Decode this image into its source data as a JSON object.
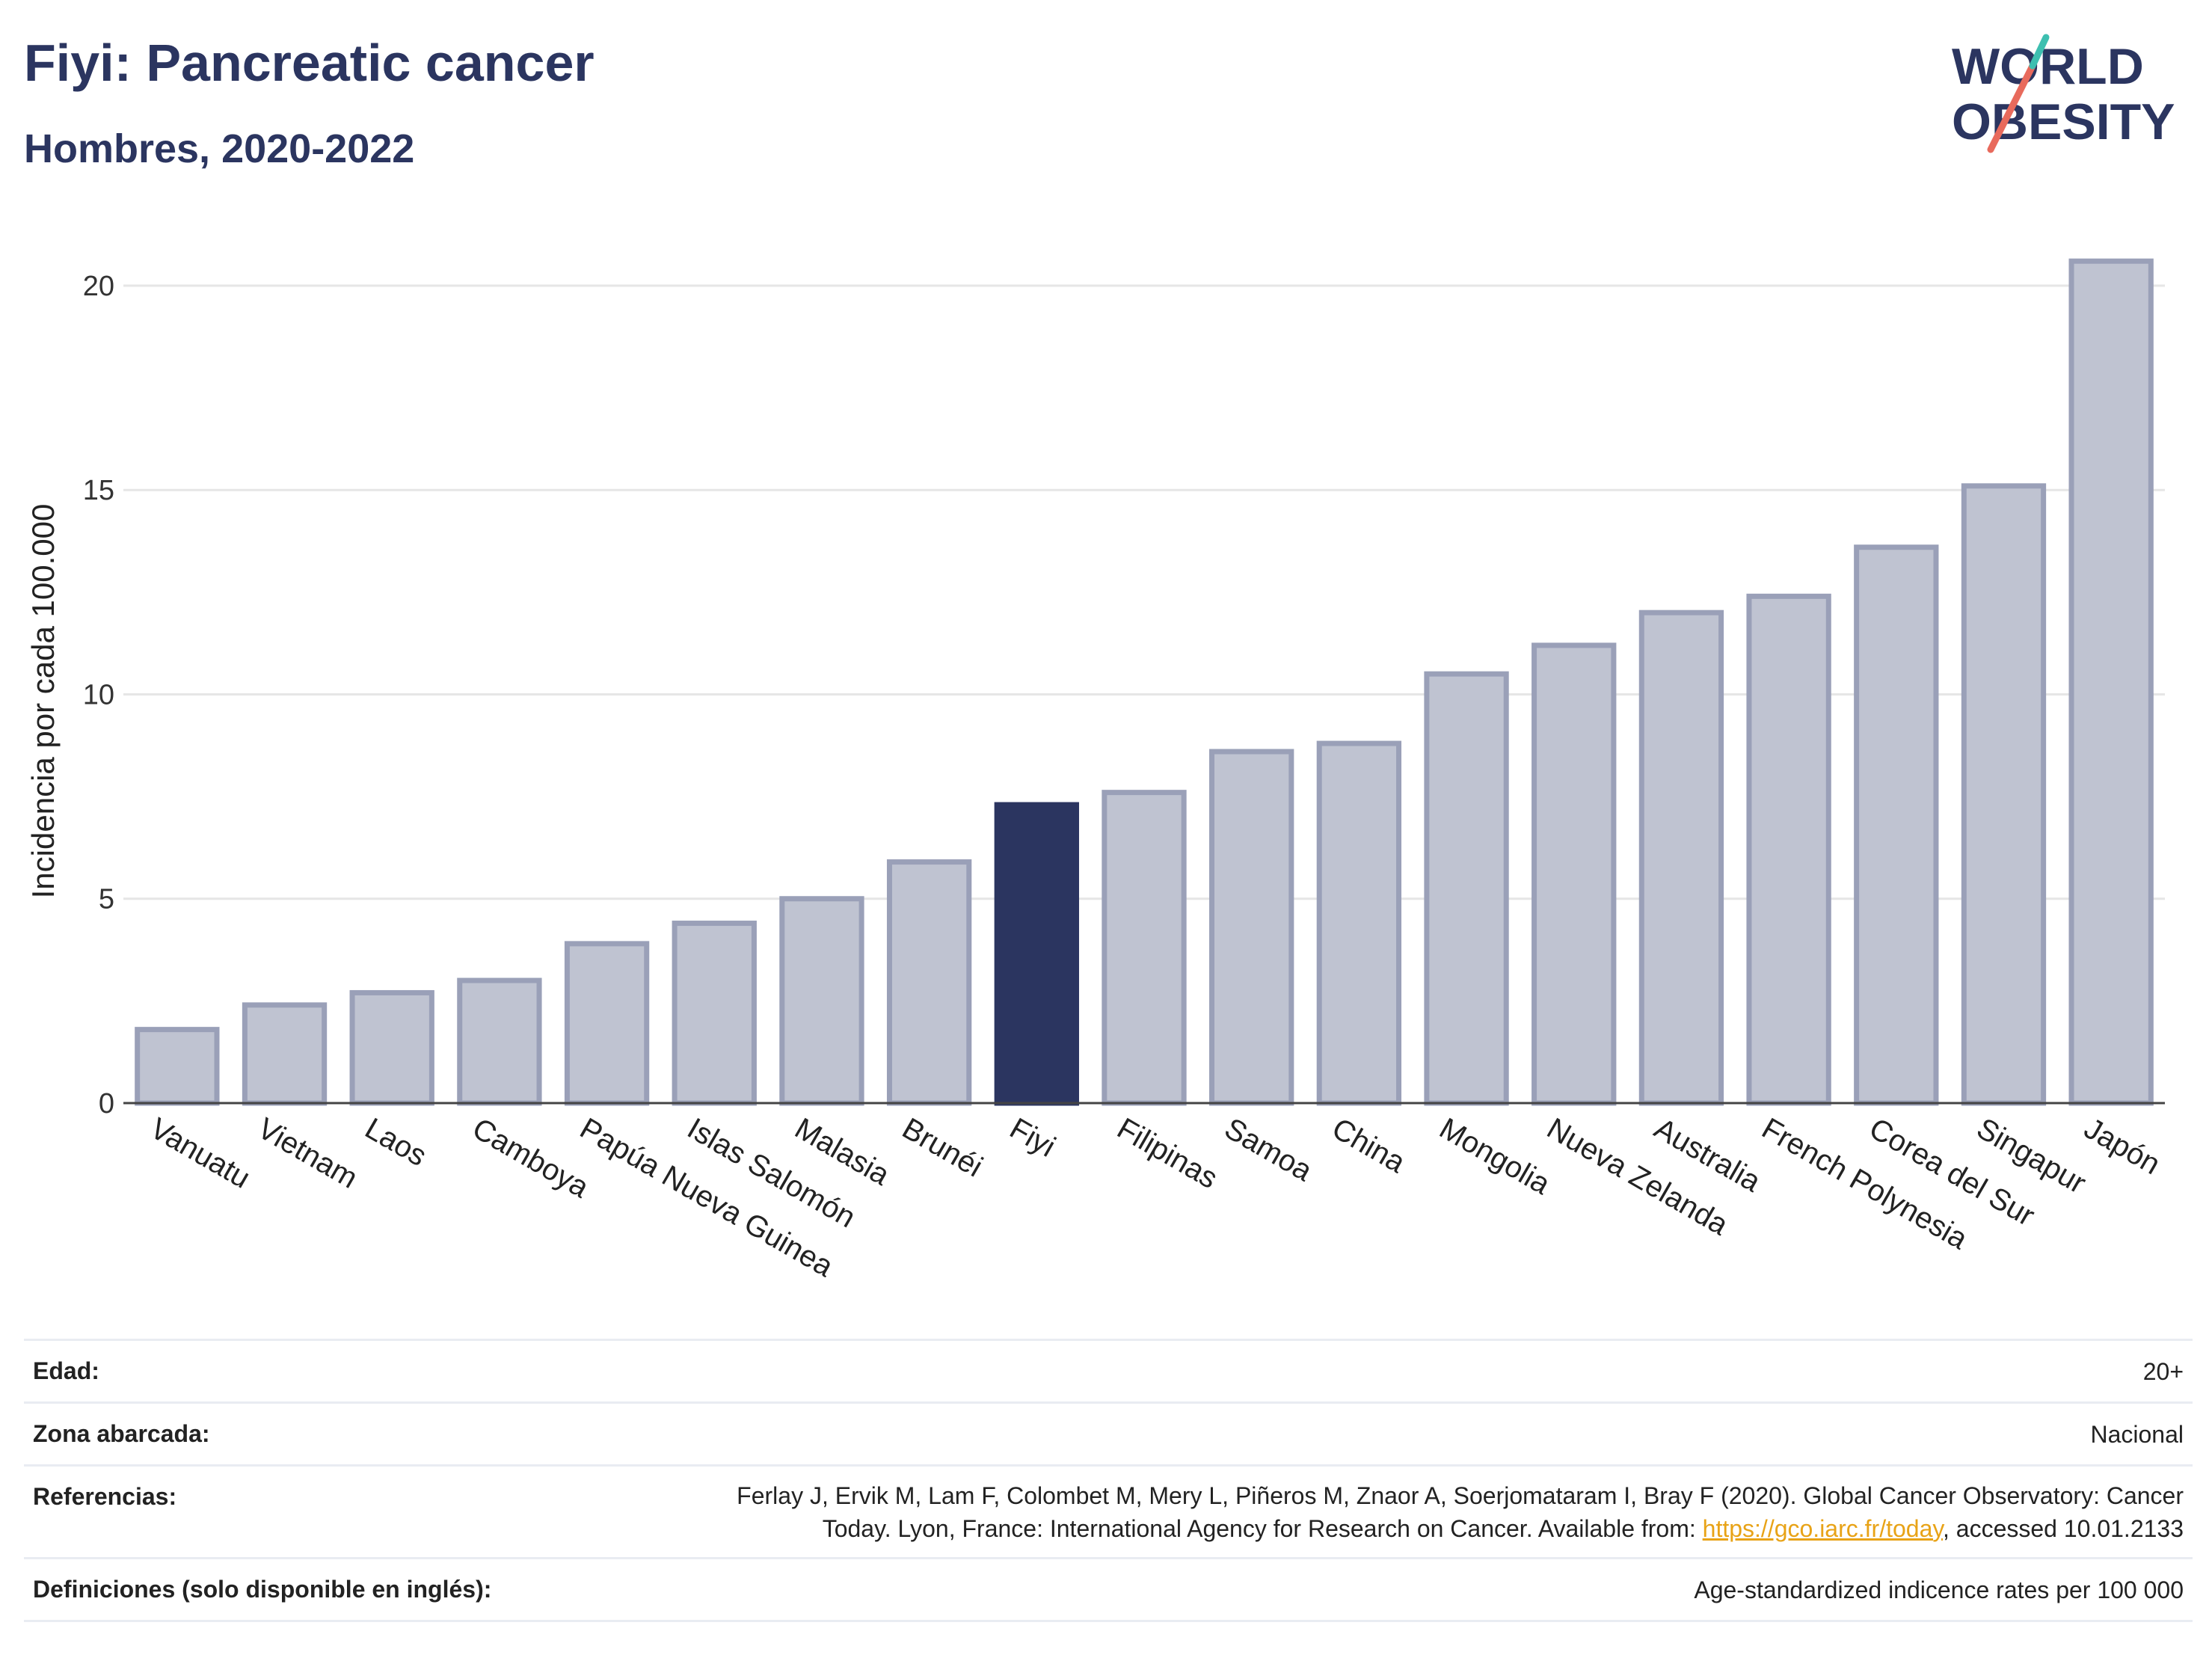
{
  "header": {
    "title": "Fiyi: Pancreatic cancer",
    "subtitle": "Hombres, 2020-2022"
  },
  "logo": {
    "line1": "WORLD",
    "line2": "OBESITY"
  },
  "colors": {
    "highlight": "#2b3560",
    "bar_fill": "#bfc3d1",
    "bar_stroke": "#9aa0b8",
    "grid": "#e6e6e6",
    "axis": "#444444"
  },
  "chart_data": {
    "type": "bar",
    "categories": [
      "Vanuatu",
      "Vietnam",
      "Laos",
      "Camboya",
      "Papúa Nueva Guinea",
      "Islas Salomón",
      "Malasia",
      "Brunéi",
      "Fiyi",
      "Filipinas",
      "Samoa",
      "China",
      "Mongolia",
      "Nueva Zelanda",
      "Australia",
      "French Polynesia",
      "Corea del Sur",
      "Singapur",
      "Japón"
    ],
    "values": [
      1.8,
      2.4,
      2.7,
      3.0,
      3.9,
      4.4,
      5.0,
      5.9,
      7.3,
      7.6,
      8.6,
      8.8,
      10.5,
      11.2,
      12.0,
      12.4,
      13.6,
      15.1,
      20.6
    ],
    "highlight": "Fiyi",
    "ylabel": "Incidencia por cada 100.000",
    "ylim": [
      0,
      21.5
    ],
    "yticks": [
      0,
      5,
      10,
      15,
      20
    ],
    "grid": true
  },
  "info": {
    "rows": [
      {
        "key": "Edad:",
        "value": "20+"
      },
      {
        "key": "Zona abarcada:",
        "value": "Nacional"
      },
      {
        "key": "Referencias:",
        "value_line1": "Ferlay J, Ervik M, Lam F, Colombet M, Mery L, Piñeros M, Znaor A, Soerjomataram I, Bray F (2020). Global Cancer Observatory: Cancer",
        "value_line2_pre": "Today. Lyon, France: International Agency for Research on Cancer. Available from: ",
        "link": "https://gco.iarc.fr/today",
        "value_line2_post": ", accessed 10.01.2133"
      },
      {
        "key": "Definiciones (solo disponible en inglés):",
        "value": "Age-standardized indicence rates per 100 000"
      }
    ]
  }
}
